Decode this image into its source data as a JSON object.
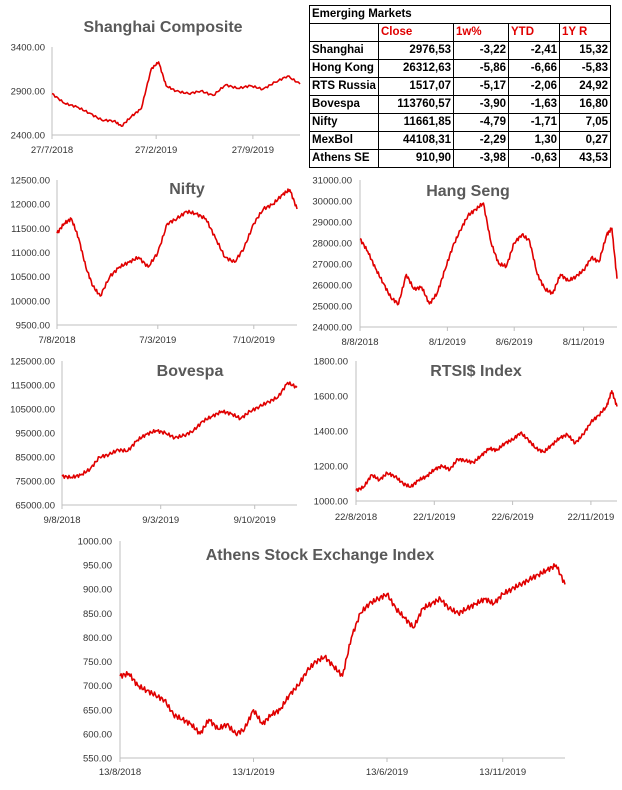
{
  "table": {
    "title": "Emerging Markets",
    "headers": [
      "Close",
      "1w%",
      "YTD",
      "1Y R"
    ],
    "rows": [
      {
        "name": "Shanghai",
        "close": "2976,53",
        "w1": "-3,22",
        "ytd": "-2,41",
        "y1": "15,32"
      },
      {
        "name": "Hong Kong",
        "close": "26312,63",
        "w1": "-5,86",
        "ytd": "-6,66",
        "y1": "-5,83"
      },
      {
        "name": "RTS Russia",
        "close": "1517,07",
        "w1": "-5,17",
        "ytd": "-2,06",
        "y1": "24,92"
      },
      {
        "name": "Bovespa",
        "close": "113760,57",
        "w1": "-3,90",
        "ytd": "-1,63",
        "y1": "16,80"
      },
      {
        "name": "Nifty",
        "close": "11661,85",
        "w1": "-4,79",
        "ytd": "-1,71",
        "y1": "7,05"
      },
      {
        "name": "MexBol",
        "close": "44108,31",
        "w1": "-2,29",
        "ytd": "1,30",
        "y1": "0,27"
      },
      {
        "name": "Athens SE",
        "close": "910,90",
        "w1": "-3,98",
        "ytd": "-0,63",
        "y1": "43,53"
      }
    ]
  },
  "chart_data": [
    {
      "id": "shanghai",
      "type": "line",
      "title": "Shanghai Composite",
      "color": "#e00000",
      "ylim": [
        2400,
        3400
      ],
      "yticks": [
        "3400.00",
        "2900.00",
        "2400.00"
      ],
      "yticks_values": [
        3400,
        2900,
        2400
      ],
      "xticks": [
        "27/7/2018",
        "27/2/2019",
        "27/9/2019"
      ],
      "xticks_positions": [
        0,
        0.42,
        0.81
      ],
      "series": [
        {
          "x": [
            0,
            0.05,
            0.1,
            0.15,
            0.2,
            0.25,
            0.28,
            0.32,
            0.36,
            0.4,
            0.43,
            0.46,
            0.5,
            0.55,
            0.6,
            0.65,
            0.7,
            0.75,
            0.8,
            0.85,
            0.9,
            0.95,
            1.0
          ],
          "values": [
            2870,
            2760,
            2720,
            2650,
            2570,
            2560,
            2500,
            2610,
            2700,
            3150,
            3230,
            2960,
            2900,
            2870,
            2900,
            2850,
            2970,
            2930,
            2960,
            2920,
            3000,
            3070,
            2980
          ]
        }
      ]
    },
    {
      "id": "nifty",
      "type": "line",
      "title": "Nifty",
      "color": "#e00000",
      "ylim": [
        9500,
        12500
      ],
      "yticks": [
        "12500.00",
        "12000.00",
        "11500.00",
        "11000.00",
        "10500.00",
        "10000.00",
        "9500.00"
      ],
      "yticks_values": [
        12500,
        12000,
        11500,
        11000,
        10500,
        10000,
        9500
      ],
      "xticks": [
        "7/8/2018",
        "7/3/2019",
        "7/10/2019"
      ],
      "xticks_positions": [
        0,
        0.42,
        0.82
      ],
      "series": [
        {
          "x": [
            0,
            0.03,
            0.06,
            0.09,
            0.12,
            0.15,
            0.18,
            0.22,
            0.26,
            0.3,
            0.34,
            0.38,
            0.42,
            0.46,
            0.5,
            0.54,
            0.58,
            0.62,
            0.66,
            0.7,
            0.74,
            0.78,
            0.82,
            0.86,
            0.9,
            0.94,
            0.97,
            1.0
          ],
          "values": [
            11400,
            11600,
            11700,
            11300,
            10700,
            10300,
            10100,
            10500,
            10700,
            10800,
            10900,
            10700,
            11000,
            11600,
            11700,
            11850,
            11800,
            11700,
            11300,
            10900,
            10800,
            11100,
            11600,
            11900,
            12000,
            12200,
            12300,
            11900
          ]
        }
      ]
    },
    {
      "id": "hangseng",
      "type": "line",
      "title": "Hang Seng",
      "color": "#e00000",
      "ylim": [
        24000,
        31000
      ],
      "yticks": [
        "31000.00",
        "30000.00",
        "29000.00",
        "28000.00",
        "27000.00",
        "26000.00",
        "25000.00",
        "24000.00"
      ],
      "yticks_values": [
        31000,
        30000,
        29000,
        28000,
        27000,
        26000,
        25000,
        24000
      ],
      "xticks": [
        "8/8/2018",
        "8/1/2019",
        "8/6/2019",
        "8/11/2019"
      ],
      "xticks_positions": [
        0,
        0.34,
        0.6,
        0.87
      ],
      "series": [
        {
          "x": [
            0,
            0.03,
            0.06,
            0.09,
            0.12,
            0.15,
            0.18,
            0.21,
            0.24,
            0.27,
            0.3,
            0.33,
            0.36,
            0.39,
            0.42,
            0.45,
            0.48,
            0.51,
            0.54,
            0.57,
            0.6,
            0.63,
            0.66,
            0.69,
            0.72,
            0.75,
            0.78,
            0.81,
            0.84,
            0.87,
            0.9,
            0.93,
            0.96,
            0.98,
            1.0
          ],
          "values": [
            28200,
            27600,
            26800,
            26100,
            25400,
            25100,
            26500,
            25800,
            25900,
            25100,
            25600,
            26700,
            27800,
            28600,
            29300,
            29600,
            29900,
            28000,
            27000,
            26900,
            28000,
            28400,
            28100,
            26500,
            25800,
            25600,
            26500,
            26200,
            26400,
            26700,
            27300,
            27100,
            28400,
            28700,
            26300
          ]
        }
      ]
    },
    {
      "id": "bovespa",
      "type": "line",
      "title": "Bovespa",
      "color": "#e00000",
      "ylim": [
        65000,
        125000
      ],
      "yticks": [
        "125000.00",
        "115000.00",
        "105000.00",
        "95000.00",
        "85000.00",
        "75000.00",
        "65000.00"
      ],
      "yticks_values": [
        125000,
        115000,
        105000,
        95000,
        85000,
        75000,
        65000
      ],
      "xticks": [
        "9/8/2018",
        "9/3/2019",
        "9/10/2019"
      ],
      "xticks_positions": [
        0,
        0.42,
        0.82
      ],
      "series": [
        {
          "x": [
            0,
            0.04,
            0.08,
            0.12,
            0.16,
            0.2,
            0.24,
            0.28,
            0.32,
            0.36,
            0.4,
            0.44,
            0.48,
            0.52,
            0.56,
            0.6,
            0.64,
            0.68,
            0.72,
            0.76,
            0.8,
            0.84,
            0.88,
            0.92,
            0.96,
            1.0
          ],
          "values": [
            77000,
            76500,
            77500,
            80000,
            85000,
            86000,
            88000,
            87500,
            92000,
            94500,
            96000,
            95000,
            93000,
            94000,
            96000,
            100000,
            102000,
            104000,
            103000,
            101000,
            104000,
            106000,
            108000,
            110000,
            116000,
            114000
          ]
        }
      ]
    },
    {
      "id": "rts",
      "type": "line",
      "title": "RTSI$ Index",
      "color": "#e00000",
      "ylim": [
        1000,
        1800
      ],
      "yticks": [
        "1800.00",
        "1600.00",
        "1400.00",
        "1200.00",
        "1000.00"
      ],
      "yticks_values": [
        1800,
        1600,
        1400,
        1200,
        1000
      ],
      "xticks": [
        "22/8/2018",
        "22/1/2019",
        "22/6/2019",
        "22/11/2019"
      ],
      "xticks_positions": [
        0,
        0.3,
        0.6,
        0.9
      ],
      "series": [
        {
          "x": [
            0,
            0.03,
            0.06,
            0.09,
            0.12,
            0.15,
            0.18,
            0.21,
            0.24,
            0.27,
            0.3,
            0.33,
            0.36,
            0.39,
            0.42,
            0.45,
            0.48,
            0.51,
            0.54,
            0.57,
            0.6,
            0.63,
            0.66,
            0.69,
            0.72,
            0.75,
            0.78,
            0.81,
            0.84,
            0.87,
            0.9,
            0.93,
            0.96,
            0.98,
            1.0
          ],
          "values": [
            1060,
            1080,
            1150,
            1120,
            1160,
            1140,
            1100,
            1080,
            1120,
            1140,
            1180,
            1200,
            1180,
            1240,
            1230,
            1220,
            1260,
            1300,
            1290,
            1330,
            1350,
            1390,
            1350,
            1300,
            1280,
            1320,
            1360,
            1380,
            1330,
            1380,
            1450,
            1490,
            1540,
            1630,
            1540
          ]
        }
      ]
    },
    {
      "id": "athens",
      "type": "line",
      "title": "Athens Stock Exchange Index",
      "color": "#e00000",
      "ylim": [
        550,
        1000
      ],
      "yticks": [
        "1000.00",
        "950.00",
        "900.00",
        "850.00",
        "800.00",
        "750.00",
        "700.00",
        "650.00",
        "600.00",
        "550.00"
      ],
      "yticks_values": [
        1000,
        950,
        900,
        850,
        800,
        750,
        700,
        650,
        600,
        550
      ],
      "xticks": [
        "13/8/2018",
        "13/1/2019",
        "13/6/2019",
        "13/11/2019"
      ],
      "xticks_positions": [
        0,
        0.3,
        0.6,
        0.86
      ],
      "series": [
        {
          "x": [
            0,
            0.02,
            0.04,
            0.06,
            0.08,
            0.1,
            0.12,
            0.14,
            0.16,
            0.18,
            0.2,
            0.22,
            0.24,
            0.26,
            0.28,
            0.3,
            0.32,
            0.34,
            0.36,
            0.38,
            0.4,
            0.42,
            0.44,
            0.46,
            0.48,
            0.5,
            0.52,
            0.54,
            0.56,
            0.58,
            0.6,
            0.62,
            0.64,
            0.66,
            0.68,
            0.7,
            0.72,
            0.74,
            0.76,
            0.78,
            0.8,
            0.82,
            0.84,
            0.86,
            0.88,
            0.9,
            0.92,
            0.94,
            0.96,
            0.98,
            1.0
          ],
          "values": [
            720,
            725,
            700,
            690,
            680,
            670,
            640,
            630,
            620,
            600,
            630,
            610,
            620,
            600,
            610,
            650,
            620,
            640,
            650,
            680,
            700,
            730,
            750,
            760,
            740,
            720,
            800,
            850,
            870,
            880,
            890,
            860,
            840,
            820,
            860,
            870,
            880,
            860,
            850,
            860,
            870,
            880,
            870,
            890,
            900,
            910,
            920,
            930,
            940,
            950,
            910
          ]
        }
      ]
    }
  ]
}
